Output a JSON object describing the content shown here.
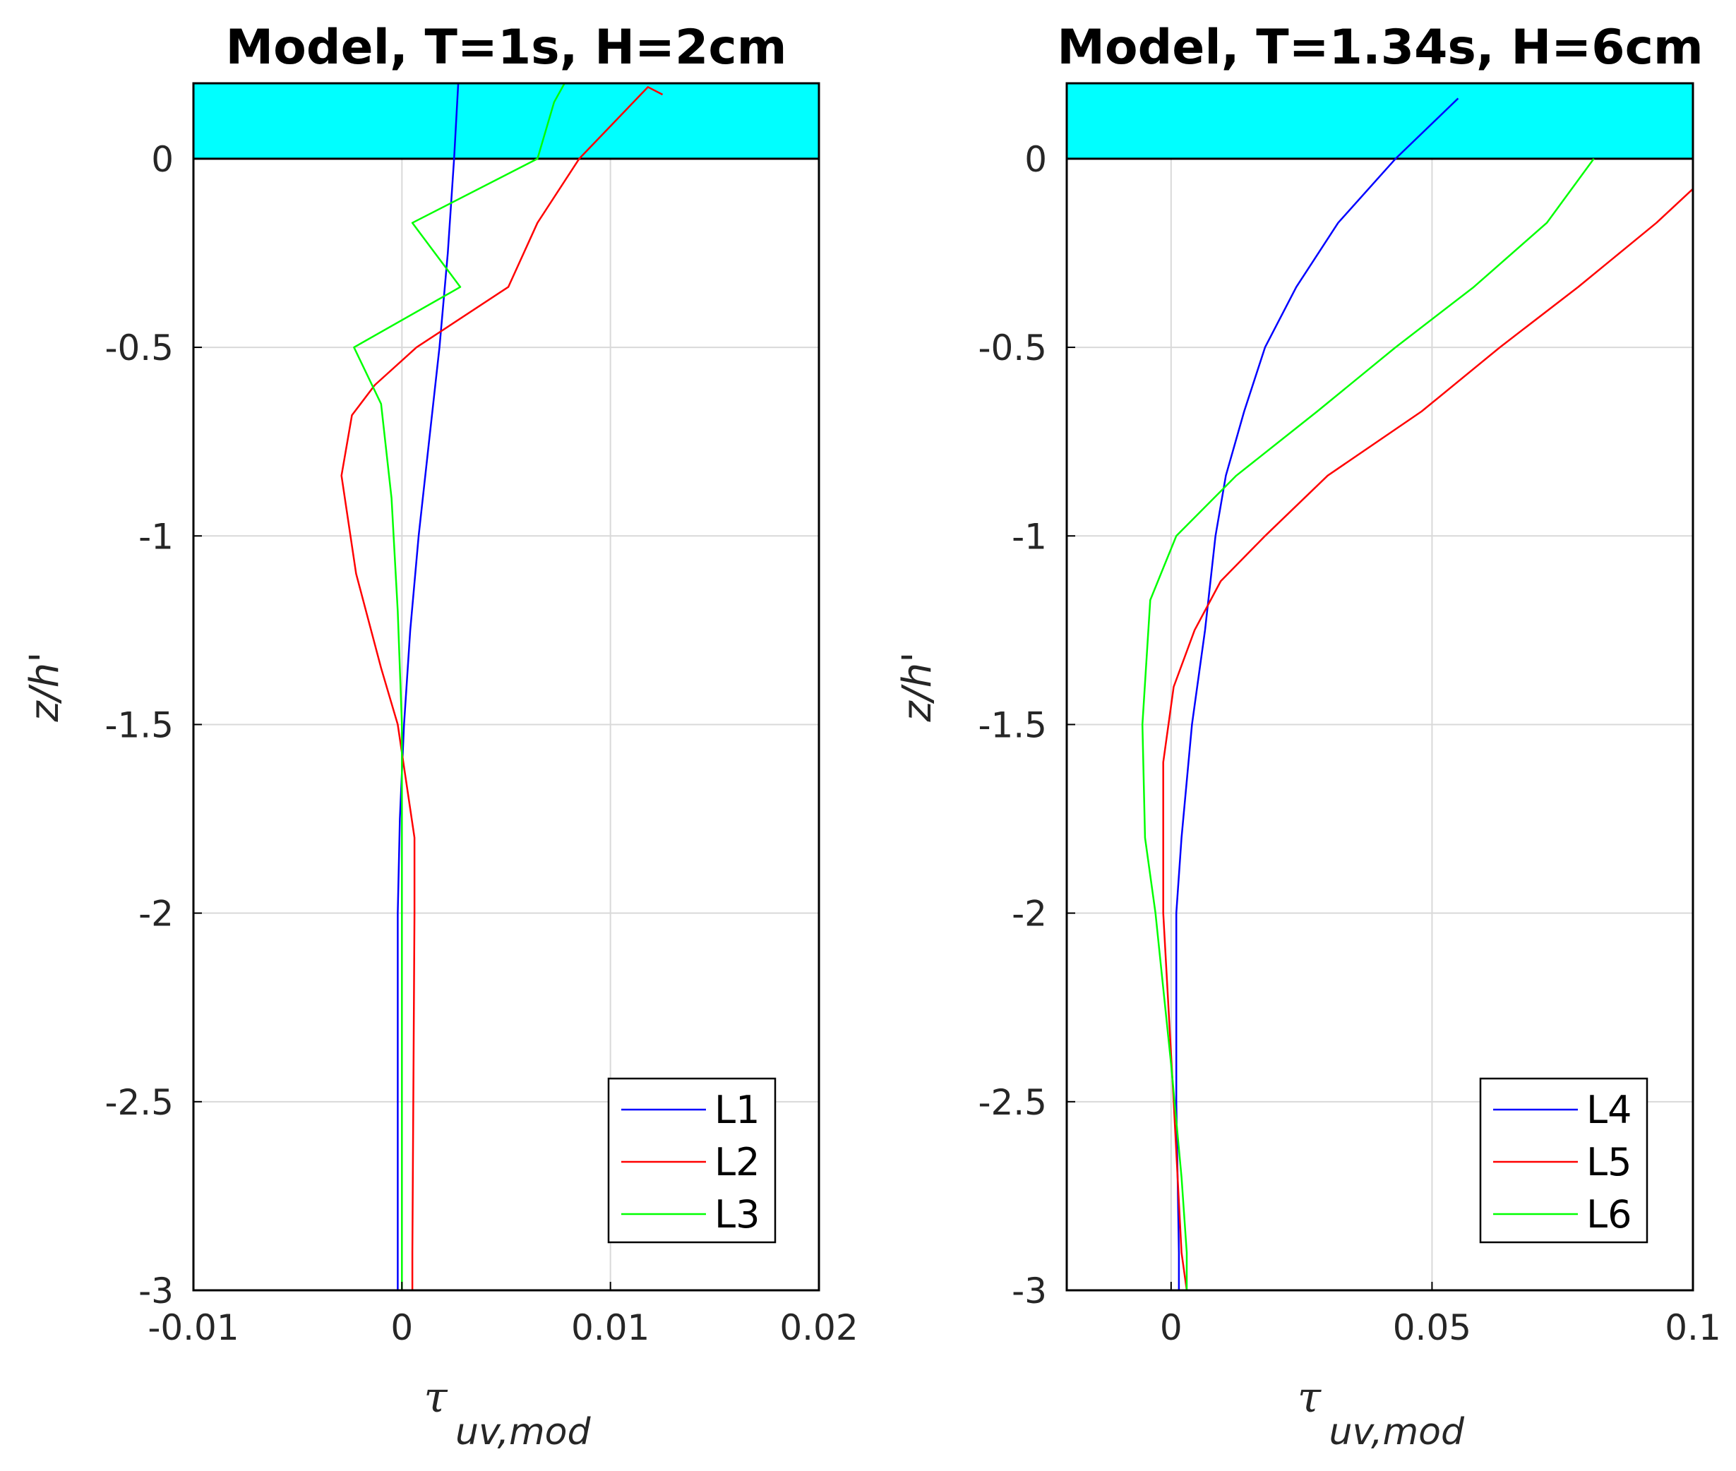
{
  "chart_data": [
    {
      "type": "line",
      "title": "Model, T=1s, H=2cm",
      "xlabel": "τ",
      "xlabel_sub": "uv,mod",
      "ylabel": "z/h'",
      "xlim": [
        -0.01,
        0.02
      ],
      "ylim": [
        -3,
        0.2
      ],
      "xticks": [
        -0.01,
        0,
        0.01,
        0.02
      ],
      "xtick_labels": [
        "-0.01",
        "0",
        "0.01",
        "0.02"
      ],
      "yticks": [
        -3,
        -2.5,
        -2,
        -1.5,
        -1,
        -0.5,
        0
      ],
      "ytick_labels": [
        "-3",
        "-2.5",
        "-2",
        "-1.5",
        "-1",
        "-0.5",
        "0"
      ],
      "grid": true,
      "water_band": {
        "from": 0,
        "to": 0.2,
        "color": "#00ffff"
      },
      "legend_position": "bottom-right",
      "series": [
        {
          "name": "L1",
          "color": "#0000ff",
          "x": [
            0.0027,
            0.0025,
            0.0022,
            0.0018,
            0.0013,
            0.0008,
            0.0004,
            0.0001,
            -0.0001,
            -0.0002,
            -0.0002,
            -0.0002,
            -0.0002
          ],
          "y": [
            0.2,
            0,
            -0.25,
            -0.5,
            -0.75,
            -1.0,
            -1.25,
            -1.5,
            -1.75,
            -2.0,
            -2.5,
            -2.9,
            -3.0
          ]
        },
        {
          "name": "L2",
          "color": "#ff0000",
          "x": [
            0.0125,
            0.0118,
            0.0085,
            0.0065,
            0.0051,
            0.0007,
            -0.0013,
            -0.0024,
            -0.0029,
            -0.0022,
            -0.001,
            -0.0002,
            0.0006,
            0.0006,
            0.0005,
            0.0005
          ],
          "y": [
            0.17,
            0.19,
            0,
            -0.17,
            -0.34,
            -0.5,
            -0.6,
            -0.68,
            -0.84,
            -1.1,
            -1.35,
            -1.5,
            -1.8,
            -2.0,
            -2.9,
            -3.0
          ]
        },
        {
          "name": "L3",
          "color": "#00ff00",
          "x": [
            0.0078,
            0.0073,
            0.0065,
            0.0005,
            0.0028,
            -0.0023,
            -0.001,
            -0.0005,
            -0.0002,
            0.0,
            0.0,
            0.0,
            0.0
          ],
          "y": [
            0.2,
            0.15,
            0,
            -0.17,
            -0.34,
            -0.5,
            -0.65,
            -0.9,
            -1.2,
            -1.5,
            -2.0,
            -2.9,
            -3.0
          ]
        }
      ]
    },
    {
      "type": "line",
      "title": "Model, T=1.34s, H=6cm",
      "xlabel": "τ",
      "xlabel_sub": "uv,mod",
      "ylabel": "z/h'",
      "xlim": [
        -0.02,
        0.1
      ],
      "ylim": [
        -3,
        0.2
      ],
      "xticks": [
        0,
        0.05,
        0.1
      ],
      "xtick_labels": [
        "0",
        "0.05",
        "0.1"
      ],
      "yticks": [
        -3,
        -2.5,
        -2,
        -1.5,
        -1,
        -0.5,
        0
      ],
      "ytick_labels": [
        "-3",
        "-2.5",
        "-2",
        "-1.5",
        "-1",
        "-0.5",
        "0"
      ],
      "grid": true,
      "water_band": {
        "from": 0,
        "to": 0.2,
        "color": "#00ffff"
      },
      "legend_position": "bottom-right",
      "series": [
        {
          "name": "L4",
          "color": "#0000ff",
          "x": [
            0.055,
            0.043,
            0.032,
            0.024,
            0.018,
            0.014,
            0.0105,
            0.0085,
            0.0065,
            0.004,
            0.002,
            0.001,
            0.001,
            0.0015,
            0.0015
          ],
          "y": [
            0.16,
            0,
            -0.17,
            -0.34,
            -0.5,
            -0.67,
            -0.84,
            -1.0,
            -1.25,
            -1.5,
            -1.8,
            -2.0,
            -2.5,
            -2.9,
            -3.0
          ]
        },
        {
          "name": "L5",
          "color": "#ff0000",
          "x": [
            0.1,
            0.093,
            0.078,
            0.063,
            0.048,
            0.03,
            0.018,
            0.0095,
            0.0045,
            0.0005,
            -0.0015,
            -0.0015,
            0.0005,
            0.002,
            0.003
          ],
          "y": [
            -0.08,
            -0.17,
            -0.34,
            -0.5,
            -0.67,
            -0.84,
            -1.0,
            -1.12,
            -1.25,
            -1.4,
            -1.6,
            -2.0,
            -2.5,
            -2.9,
            -3.0
          ]
        },
        {
          "name": "L6",
          "color": "#00ff00",
          "x": [
            0.081,
            0.072,
            0.058,
            0.043,
            0.028,
            0.0125,
            0.001,
            -0.004,
            -0.0055,
            -0.005,
            -0.003,
            0.0,
            0.002,
            0.003,
            0.003
          ],
          "y": [
            0,
            -0.17,
            -0.34,
            -0.5,
            -0.67,
            -0.84,
            -1.0,
            -1.17,
            -1.5,
            -1.8,
            -2.0,
            -2.4,
            -2.7,
            -2.9,
            -3.0
          ]
        }
      ]
    }
  ]
}
